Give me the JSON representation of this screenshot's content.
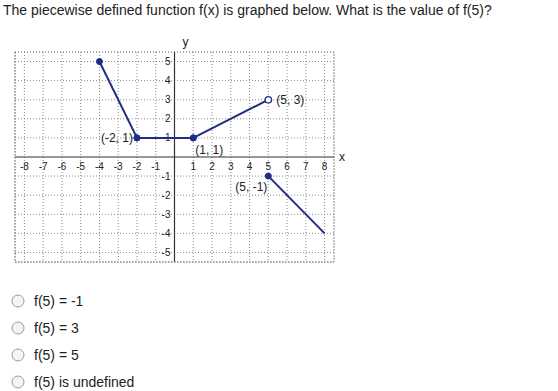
{
  "question": "The piecewise defined function f(x) is graphed below. What is the value of f(5)?",
  "chart_data": {
    "type": "line",
    "x_label": "x",
    "y_label": "y",
    "xlim": [
      -8.5,
      8.5
    ],
    "ylim": [
      -5.5,
      5.5
    ],
    "xticks": [
      -8,
      -7,
      -6,
      -5,
      -4,
      -3,
      -2,
      -1,
      1,
      2,
      3,
      4,
      5,
      6,
      7,
      8
    ],
    "yticks": [
      -5,
      -4,
      -3,
      -2,
      -1,
      1,
      2,
      3,
      4,
      5
    ],
    "grid": true,
    "color": "#1f2d86",
    "series": [
      {
        "points": [
          {
            "x": -4,
            "y": 5,
            "marker": "closed"
          },
          {
            "x": -2,
            "y": 1,
            "marker": "closed",
            "label": "(-2, 1)"
          }
        ]
      },
      {
        "points": [
          {
            "x": -2,
            "y": 1,
            "marker": "closed"
          },
          {
            "x": 1,
            "y": 1,
            "marker": "closed",
            "label": "(1, 1)"
          }
        ]
      },
      {
        "points": [
          {
            "x": 1,
            "y": 1,
            "marker": "closed"
          },
          {
            "x": 5,
            "y": 3,
            "marker": "open",
            "label": "(5, 3)"
          }
        ]
      },
      {
        "points": [
          {
            "x": 5,
            "y": -1,
            "marker": "closed",
            "label": "(5, -1)"
          },
          {
            "x": 8,
            "y": -4,
            "marker": "none"
          }
        ]
      }
    ]
  },
  "options": [
    "f(5) = -1",
    "f(5) = 3",
    "f(5) = 5",
    "f(5) is undefined"
  ]
}
